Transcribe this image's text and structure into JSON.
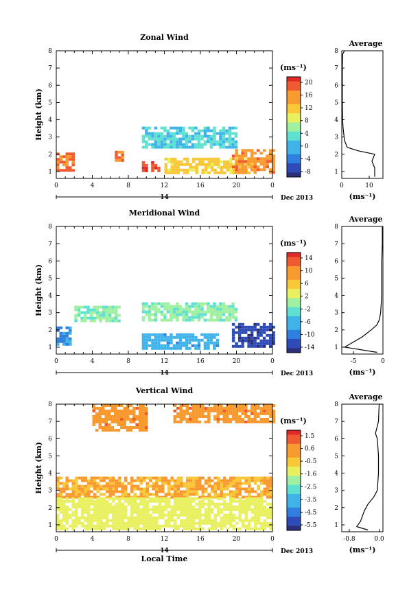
{
  "panels": [
    {
      "title": "Zonal Wind",
      "unit": "(ms⁻¹)",
      "cbar_ticks": [
        "20",
        "16",
        "12",
        "8",
        "4",
        "0",
        "-4",
        "-8"
      ],
      "avg": {
        "title": "Average",
        "ticks": [
          "0",
          "10"
        ],
        "unit": "(ms⁻¹)"
      }
    },
    {
      "title": "Meridional Wind",
      "unit": "(ms⁻¹)",
      "cbar_ticks": [
        "14",
        "10",
        "6",
        "2",
        "-2",
        "-6",
        "-10",
        "-14"
      ],
      "avg": {
        "title": "Average",
        "ticks": [
          "-5",
          "0"
        ],
        "unit": "(ms⁻¹)"
      }
    },
    {
      "title": "Vertical Wind",
      "unit": "(ms⁻¹)",
      "cbar_ticks": [
        "1.5",
        "0.6",
        "-0.5",
        "-1.6",
        "-2.5",
        "-3.5",
        "-4.5",
        "-5.5"
      ],
      "avg": {
        "title": "Average",
        "ticks": [
          "-0.8",
          "0.0"
        ],
        "unit": "(ms⁻¹)"
      }
    }
  ],
  "axes": {
    "ylabel": "Height (km)",
    "y_ticks": [
      "1",
      "2",
      "3",
      "4",
      "5",
      "6",
      "7",
      "8"
    ],
    "x_ticks": [
      "0",
      "4",
      "8",
      "12",
      "16",
      "20",
      "0"
    ],
    "date_day": "14",
    "date_label": "Dec 2013",
    "xlabel": "Local Time"
  },
  "colors": {
    "scale": [
      "#2b2f7a",
      "#2e4bb8",
      "#2f7fe0",
      "#3fb3e8",
      "#5fe0d0",
      "#9ff0a0",
      "#e8f060",
      "#f8c838",
      "#f89a30",
      "#f05a30",
      "#e02828"
    ]
  },
  "chart_data": [
    {
      "type": "heatmap",
      "title": "Zonal Wind",
      "x_range": [
        0,
        24
      ],
      "y_range": [
        0.6,
        8
      ],
      "ylabel": "Height (km)",
      "colorbar_range": [
        -8,
        20
      ],
      "features": [
        {
          "x0": 0,
          "x1": 2,
          "y0": 1.0,
          "y1": 2.1,
          "value": 16
        },
        {
          "x0": 6.5,
          "x1": 7.2,
          "y0": 1.6,
          "y1": 2.2,
          "value": 16
        },
        {
          "x0": 9.5,
          "x1": 11.5,
          "y0": 1.0,
          "y1": 1.6,
          "value": 18
        },
        {
          "x0": 12,
          "x1": 22,
          "y0": 1.0,
          "y1": 1.8,
          "value": 11
        },
        {
          "x0": 19.5,
          "x1": 24,
          "y0": 1.0,
          "y1": 2.3,
          "value": 15
        },
        {
          "x0": 9.5,
          "x1": 20,
          "y0": 2.4,
          "y1": 3.6,
          "value": 2
        }
      ],
      "profile": {
        "title": "Average",
        "x_range": [
          0,
          15
        ],
        "points": [
          [
            0.7,
            12
          ],
          [
            1.2,
            12
          ],
          [
            1.6,
            11
          ],
          [
            2.0,
            12
          ],
          [
            2.2,
            6
          ],
          [
            2.4,
            2
          ],
          [
            2.8,
            1
          ],
          [
            3.5,
            0.5
          ],
          [
            4,
            0.3
          ],
          [
            5,
            0.2
          ],
          [
            6,
            0.2
          ],
          [
            7,
            0.2
          ],
          [
            7.8,
            0.3
          ],
          [
            8,
            1
          ]
        ]
      }
    },
    {
      "type": "heatmap",
      "title": "Meridional Wind",
      "x_range": [
        0,
        24
      ],
      "y_range": [
        0.6,
        8
      ],
      "ylabel": "Height (km)",
      "colorbar_range": [
        -14,
        14
      ],
      "features": [
        {
          "x0": 2,
          "x1": 7,
          "y0": 2.6,
          "y1": 3.4,
          "value": -1
        },
        {
          "x0": 9.5,
          "x1": 20,
          "y0": 2.5,
          "y1": 3.6,
          "value": -1
        },
        {
          "x0": 9.5,
          "x1": 18,
          "y0": 1.0,
          "y1": 1.8,
          "value": -6
        },
        {
          "x0": 19.5,
          "x1": 24,
          "y0": 1.0,
          "y1": 2.4,
          "value": -12
        },
        {
          "x0": 0,
          "x1": 1.5,
          "y0": 1.0,
          "y1": 2.2,
          "value": -7
        }
      ],
      "profile": {
        "title": "Average",
        "x_range": [
          -7,
          0
        ],
        "points": [
          [
            0.7,
            -1
          ],
          [
            1.0,
            -6.5
          ],
          [
            1.3,
            -5
          ],
          [
            1.6,
            -3.5
          ],
          [
            2.0,
            -2
          ],
          [
            2.3,
            -1
          ],
          [
            2.6,
            -0.6
          ],
          [
            3.0,
            -0.4
          ],
          [
            4,
            -0.2
          ],
          [
            5,
            -0.2
          ],
          [
            6,
            -0.2
          ],
          [
            7,
            -0.1
          ],
          [
            8,
            -0.1
          ]
        ]
      }
    },
    {
      "type": "heatmap",
      "title": "Vertical Wind",
      "x_range": [
        0,
        24
      ],
      "y_range": [
        0.6,
        8
      ],
      "ylabel": "Height (km)",
      "xlabel": "Local Time",
      "colorbar_range": [
        -5.5,
        1.5
      ],
      "features": [
        {
          "x0": 0,
          "x1": 24,
          "y0": 2.6,
          "y1": 3.8,
          "value": -0.2
        },
        {
          "x0": 0,
          "x1": 24,
          "y0": 0.8,
          "y1": 2.6,
          "value": -1.3
        },
        {
          "x0": 4,
          "x1": 10,
          "y0": 6.5,
          "y1": 8,
          "value": 0.2
        },
        {
          "x0": 13,
          "x1": 24,
          "y0": 7,
          "y1": 8,
          "value": 0.2
        }
      ],
      "profile": {
        "title": "Average",
        "x_range": [
          -1,
          0.1
        ],
        "points": [
          [
            0.7,
            -0.3
          ],
          [
            0.9,
            -0.6
          ],
          [
            1.2,
            -0.5
          ],
          [
            1.5,
            -0.45
          ],
          [
            1.8,
            -0.4
          ],
          [
            2.2,
            -0.3
          ],
          [
            2.6,
            -0.15
          ],
          [
            3.0,
            -0.05
          ],
          [
            4,
            -0.02
          ],
          [
            5,
            -0.02
          ],
          [
            6,
            -0.05
          ],
          [
            6.3,
            -0.1
          ],
          [
            7,
            -0.02
          ],
          [
            8,
            0.0
          ]
        ]
      }
    }
  ]
}
